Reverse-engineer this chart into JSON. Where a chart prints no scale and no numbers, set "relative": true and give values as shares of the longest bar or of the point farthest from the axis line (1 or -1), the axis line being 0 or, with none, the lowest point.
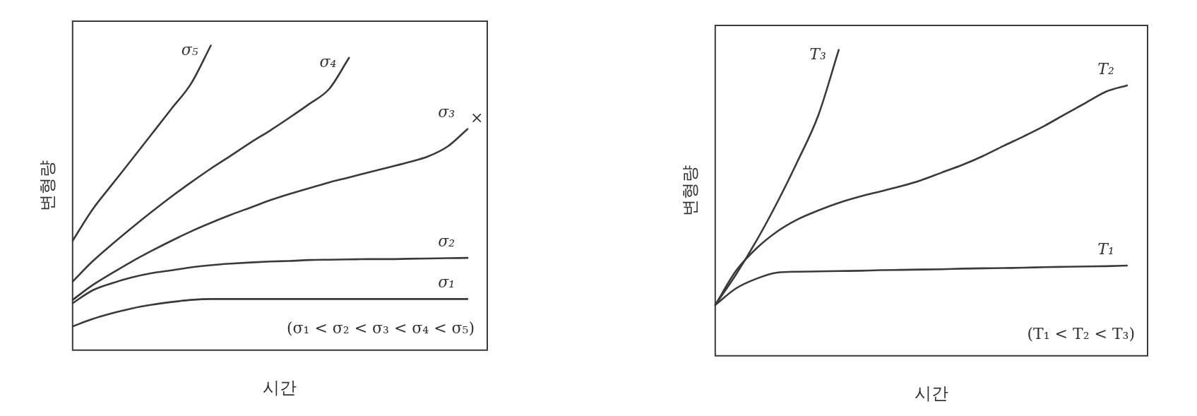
{
  "chart_data": [
    {
      "type": "line",
      "relative": true,
      "xlabel": "시간",
      "ylabel": "변형량",
      "legend": false,
      "grid": false,
      "marker": "none",
      "line_style": "solid",
      "categories": [
        null,
        null,
        null,
        null,
        null,
        null,
        null,
        null,
        null,
        null,
        null,
        null,
        null,
        null,
        null,
        null,
        null,
        null,
        null,
        null,
        null,
        null
      ],
      "series": [
        {
          "name": "σ₁",
          "color": "#3a3a3a",
          "values": [
            0.078,
            0.102,
            0.121,
            0.137,
            0.149,
            0.158,
            0.165,
            0.168,
            0.168,
            0.168,
            0.168,
            0.168,
            0.168,
            0.168,
            0.168,
            0.168,
            0.168,
            0.168,
            0.168,
            0.168,
            0.168,
            null
          ]
        },
        {
          "name": "σ₂",
          "color": "#3a3a3a",
          "values": [
            0.154,
            0.196,
            0.22,
            0.239,
            0.253,
            0.262,
            0.272,
            0.279,
            0.284,
            0.288,
            0.291,
            0.293,
            0.296,
            0.297,
            0.298,
            0.299,
            0.299,
            0.3,
            0.301,
            0.302,
            0.303,
            null
          ]
        },
        {
          "name": "σ₃",
          "color": "#3a3a3a",
          "values": [
            0.165,
            0.213,
            0.253,
            0.291,
            0.326,
            0.359,
            0.39,
            0.418,
            0.444,
            0.468,
            0.492,
            0.513,
            0.532,
            0.551,
            0.567,
            0.584,
            0.6,
            0.617,
            0.636,
            0.669,
            0.726,
            null
          ]
        },
        {
          "name": "σ₄",
          "color": "#3a3a3a",
          "values": [
            0.225,
            0.291,
            0.348,
            0.402,
            0.454,
            0.504,
            0.551,
            0.596,
            0.638,
            0.681,
            0.721,
            0.764,
            0.809,
            0.858,
            0.96,
            null,
            null,
            null,
            null,
            null,
            null,
            null
          ]
        },
        {
          "name": "σ₅",
          "color": "#3a3a3a",
          "values": [
            0.359,
            0.461,
            0.544,
            0.626,
            0.709,
            0.792,
            0.875,
            1.0,
            null,
            null,
            null,
            null,
            null,
            null,
            null,
            null,
            null,
            null,
            null,
            null,
            null,
            null
          ]
        }
      ],
      "annotations": [
        "×",
        "(σ₁ < σ₂ < σ₃ < σ₄ < σ₅)"
      ]
    },
    {
      "type": "line",
      "relative": true,
      "xlabel": "시간",
      "ylabel": "변형량",
      "legend": false,
      "grid": false,
      "marker": "none",
      "line_style": "solid",
      "categories": [
        null,
        null,
        null,
        null,
        null,
        null,
        null,
        null,
        null,
        null,
        null,
        null,
        null,
        null,
        null,
        null,
        null,
        null,
        null,
        null,
        null,
        null
      ],
      "series": [
        {
          "name": "T₁",
          "color": "#3a3a3a",
          "values": [
            0.166,
            0.22,
            0.252,
            0.272,
            0.275,
            0.276,
            0.277,
            0.278,
            0.28,
            0.281,
            0.282,
            0.283,
            0.285,
            0.286,
            0.287,
            0.288,
            0.29,
            0.291,
            0.292,
            0.293,
            0.295,
            null
          ]
        },
        {
          "name": "T₂",
          "color": "#3a3a3a",
          "values": [
            0.166,
            0.277,
            0.351,
            0.406,
            0.446,
            0.475,
            0.5,
            0.52,
            0.537,
            0.554,
            0.574,
            0.599,
            0.624,
            0.653,
            0.686,
            0.718,
            0.752,
            0.79,
            0.827,
            0.864,
            0.884,
            null
          ]
        },
        {
          "name": "T₃",
          "color": "#3a3a3a",
          "values": [
            0.166,
            0.265,
            0.376,
            0.5,
            0.636,
            0.785,
            1.0,
            null,
            null,
            null,
            null,
            null,
            null,
            null,
            null,
            null,
            null,
            null,
            null,
            null,
            null,
            null
          ]
        }
      ],
      "annotations": [
        "(T₁ < T₂ < T₃)"
      ]
    }
  ]
}
